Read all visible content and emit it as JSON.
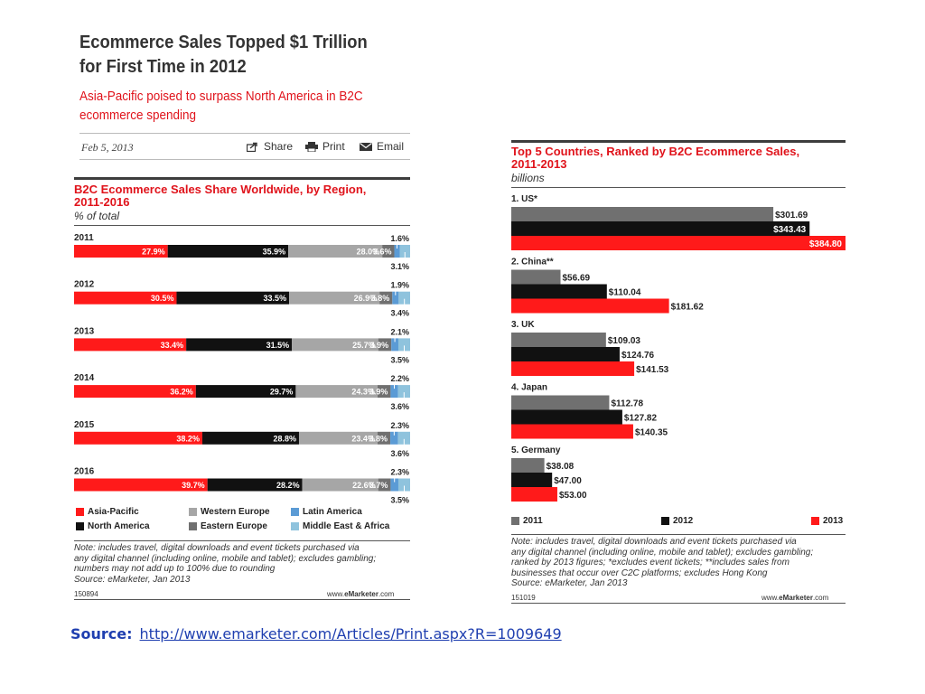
{
  "article": {
    "title_line1": "Ecommerce Sales Topped $1 Trillion",
    "title_line2": "for First Time in 2012",
    "subtitle_line1": "Asia-Pacific poised to surpass North America in B2C",
    "subtitle_line2": "ecommerce spending",
    "date": "Feb 5, 2013",
    "share_label": "Share",
    "print_label": "Print",
    "email_label": "Email"
  },
  "source": {
    "label": "Source:",
    "url": "http://www.emarketer.com/Articles/Print.aspx?R=1009649"
  },
  "colors": {
    "red": "#ff1a1a",
    "black": "#111111",
    "light_gray": "#a6a6a6",
    "dark_gray": "#707070",
    "blue": "#5b9bd5",
    "light_blue": "#8fc3dd"
  },
  "chart_data": [
    {
      "type": "bar",
      "stacked": true,
      "orientation": "horizontal",
      "title_line1": "B2C Ecommerce Sales Share Worldwide, by Region,",
      "title_line2": "2011-2016",
      "unit": "% of total",
      "categories": [
        "2011",
        "2012",
        "2013",
        "2014",
        "2015",
        "2016"
      ],
      "series": [
        {
          "name": "Asia-Pacific",
          "values": [
            27.9,
            30.5,
            33.4,
            36.2,
            38.2,
            39.7
          ],
          "labels": [
            "27.9%",
            "30.5%",
            "33.4%",
            "36.2%",
            "38.2%",
            "39.7%"
          ]
        },
        {
          "name": "North America",
          "values": [
            35.9,
            33.5,
            31.5,
            29.7,
            28.8,
            28.2
          ],
          "labels": [
            "35.9%",
            "33.5%",
            "31.5%",
            "29.7%",
            "28.8%",
            "28.2%"
          ]
        },
        {
          "name": "Western Europe",
          "values": [
            28.0,
            26.9,
            25.7,
            24.3,
            23.4,
            22.6
          ],
          "labels": [
            "28.0%",
            "26.9%",
            "25.7%",
            "24.3%",
            "23.4%",
            "22.6%"
          ]
        },
        {
          "name": "Eastern Europe",
          "values": [
            3.6,
            3.8,
            3.9,
            3.9,
            3.8,
            3.7
          ],
          "labels": [
            "3.6%",
            "3.8%",
            "3.9%",
            "3.9%",
            "3.8%",
            "3.7%"
          ]
        },
        {
          "name": "Latin America",
          "values": [
            1.6,
            1.9,
            2.1,
            2.2,
            2.3,
            2.3
          ],
          "labels": [
            "1.6%",
            "1.9%",
            "2.1%",
            "2.2%",
            "2.3%",
            "2.3%"
          ]
        },
        {
          "name": "Middle East & Africa",
          "values": [
            3.1,
            3.4,
            3.5,
            3.6,
            3.6,
            3.5
          ],
          "labels": [
            "3.1%",
            "3.4%",
            "3.5%",
            "3.6%",
            "3.6%",
            "3.5%"
          ]
        }
      ],
      "legend": [
        "Asia-Pacific",
        "Western Europe",
        "Latin America",
        "North America",
        "Eastern Europe",
        "Middle East & Africa"
      ],
      "note": [
        "Note: includes travel, digital downloads and event tickets purchased via",
        "any digital channel (including online, mobile and tablet); excludes gambling;",
        "numbers may not add up to 100% due to rounding",
        "Source: eMarketer, Jan 2013"
      ],
      "id_code": "150894",
      "brand_prefix": "www.",
      "brand_name": "eMarketer",
      "brand_suffix": ".com"
    },
    {
      "type": "bar",
      "orientation": "horizontal",
      "title_line1": "Top 5 Countries, Ranked by B2C Ecommerce Sales,",
      "title_line2": "2011-2013",
      "unit": "billions",
      "categories": [
        "1. US*",
        "2. China**",
        "3. UK",
        "4. Japan",
        "5. Germany"
      ],
      "series": [
        {
          "name": "2011",
          "values": [
            301.69,
            56.69,
            109.03,
            112.78,
            38.08
          ],
          "labels": [
            "$301.69",
            "$56.69",
            "$109.03",
            "$112.78",
            "$38.08"
          ]
        },
        {
          "name": "2012",
          "values": [
            343.43,
            110.04,
            124.76,
            127.82,
            47.0
          ],
          "labels": [
            "$343.43",
            "$110.04",
            "$124.76",
            "$127.82",
            "$47.00"
          ]
        },
        {
          "name": "2013",
          "values": [
            384.8,
            181.62,
            141.53,
            140.35,
            53.0
          ],
          "labels": [
            "$384.80",
            "$181.62",
            "$141.53",
            "$140.35",
            "$53.00"
          ]
        }
      ],
      "note": [
        "Note: includes travel, digital downloads and event tickets purchased via",
        "any digital channel (including online, mobile and tablet); excludes gambling;",
        "ranked by 2013 figures; *excludes event tickets; **includes sales from",
        "businesses that occur over C2C platforms; excludes Hong Kong",
        "Source: eMarketer, Jan 2013"
      ],
      "id_code": "151019",
      "brand_prefix": "www.",
      "brand_name": "eMarketer",
      "brand_suffix": ".com"
    }
  ]
}
